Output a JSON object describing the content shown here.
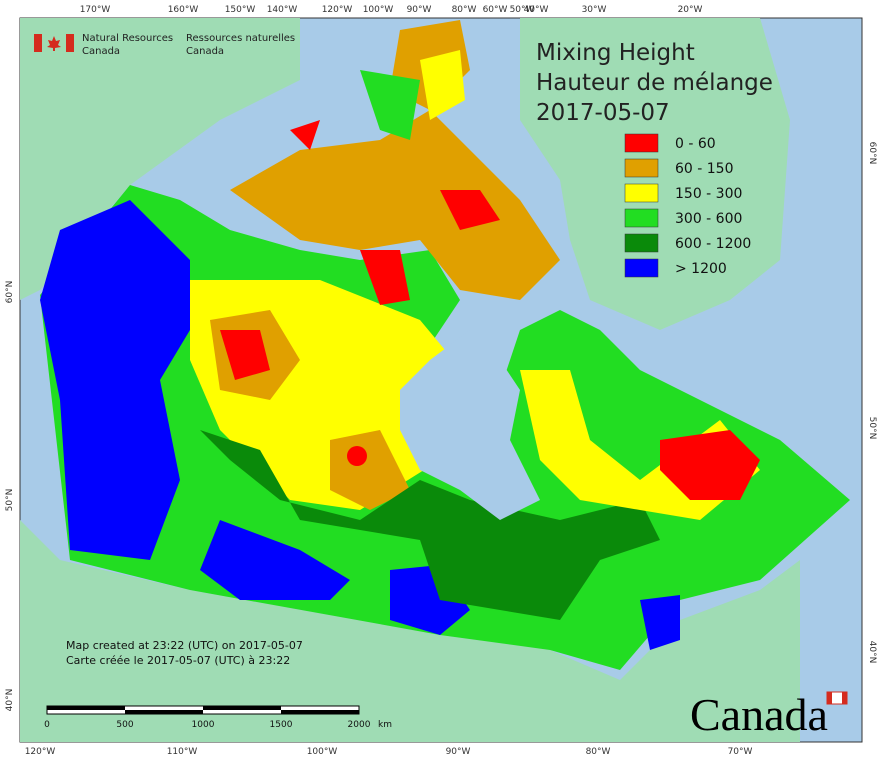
{
  "header": {
    "en": [
      "Natural Resources",
      "Canada"
    ],
    "fr": [
      "Ressources naturelles",
      "Canada"
    ]
  },
  "title": [
    "Mixing Height",
    "Hauteur de mélange",
    "2017-05-07"
  ],
  "legend": [
    {
      "label": "0 - 60",
      "color": "#ff0000"
    },
    {
      "label": "60 - 150",
      "color": "#e0a000"
    },
    {
      "label": "150 - 300",
      "color": "#ffff00"
    },
    {
      "label": "300 - 600",
      "color": "#22dd22"
    },
    {
      "label": "600 - 1200",
      "color": "#0a8a0a"
    },
    {
      "label": "> 1200",
      "color": "#0000ff"
    }
  ],
  "top_lon_labels": [
    "170°W",
    "160°W",
    "150°W",
    "140°W",
    "120°W",
    "100°W",
    "90°W",
    "80°W",
    "60°W",
    "50°W",
    "40°W",
    "30°W",
    "20°W"
  ],
  "bottom_lon_labels": [
    "120°W",
    "110°W",
    "100°W",
    "90°W",
    "80°W",
    "70°W"
  ],
  "left_lat_labels": [
    "60°N",
    "50°N",
    "40°N"
  ],
  "right_lat_labels": [
    "60°N",
    "50°N",
    "40°N"
  ],
  "notes": [
    "Map created at 23:22 (UTC) on 2017-05-07",
    "Carte créée le 2017-05-07 (UTC) à 23:22"
  ],
  "scale_labels": [
    "0",
    "500",
    "1000",
    "1500",
    "2000",
    "km"
  ],
  "wordmark": "Canada"
}
